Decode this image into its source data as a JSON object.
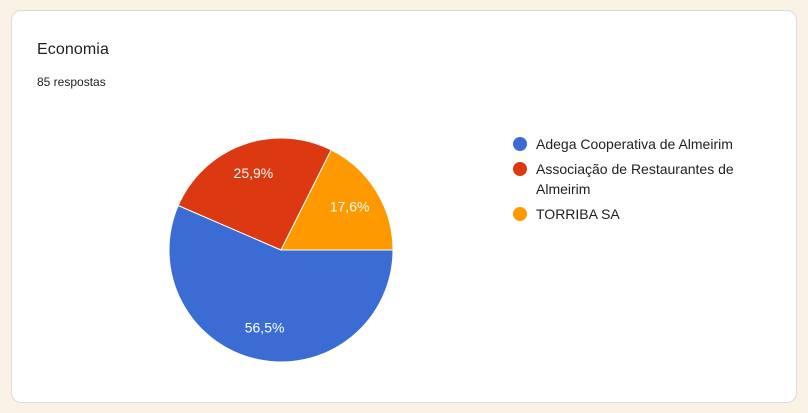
{
  "theme": {
    "page_background": "#faf2e4",
    "card_background": "#ffffff",
    "card_border": "#dadce0",
    "text_color": "#202124",
    "slice_label_color": "#ffffff"
  },
  "card": {
    "title": "Economia",
    "subtitle": "85 respostas"
  },
  "chart_data": {
    "type": "pie",
    "title": "Economia",
    "subtitle": "85 respostas",
    "legend_position": "right",
    "start_angle_clockwise_from_top_deg": 90,
    "slice_separator_color": "#ffffff",
    "slices": [
      {
        "label": "Adega Cooperativa de Almeirim",
        "value_pct": 56.5,
        "display": "56,5%",
        "color": "#3b6cd4"
      },
      {
        "label": "Associação de Restaurantes de Almeirim",
        "value_pct": 25.9,
        "display": "25,9%",
        "color": "#dc3912"
      },
      {
        "label": "TORRIBA SA",
        "value_pct": 17.6,
        "display": "17,6%",
        "color": "#ff9900"
      }
    ]
  }
}
